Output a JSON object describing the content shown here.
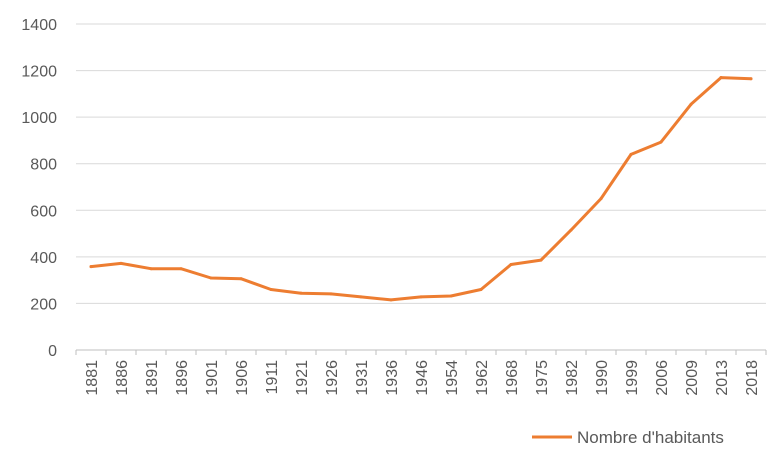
{
  "chart_data": {
    "type": "line",
    "title": "",
    "xlabel": "",
    "ylabel": "",
    "ylim": [
      0,
      1400
    ],
    "yticks": [
      0,
      200,
      400,
      600,
      800,
      1000,
      1200,
      1400
    ],
    "grid": true,
    "legend_position": "bottom-right",
    "categories": [
      "1881",
      "1886",
      "1891",
      "1896",
      "1901",
      "1906",
      "1911",
      "1921",
      "1926",
      "1931",
      "1936",
      "1946",
      "1954",
      "1962",
      "1968",
      "1975",
      "1982",
      "1990",
      "1999",
      "2006",
      "2009",
      "2013",
      "2018"
    ],
    "series": [
      {
        "name": "Nombre d'habitants",
        "color": "#ED7D31",
        "values": [
          358,
          372,
          349,
          349,
          309,
          306,
          260,
          244,
          241,
          228,
          215,
          228,
          232,
          260,
          367,
          386,
          515,
          650,
          840,
          893,
          1055,
          1170,
          1165
        ]
      }
    ]
  }
}
